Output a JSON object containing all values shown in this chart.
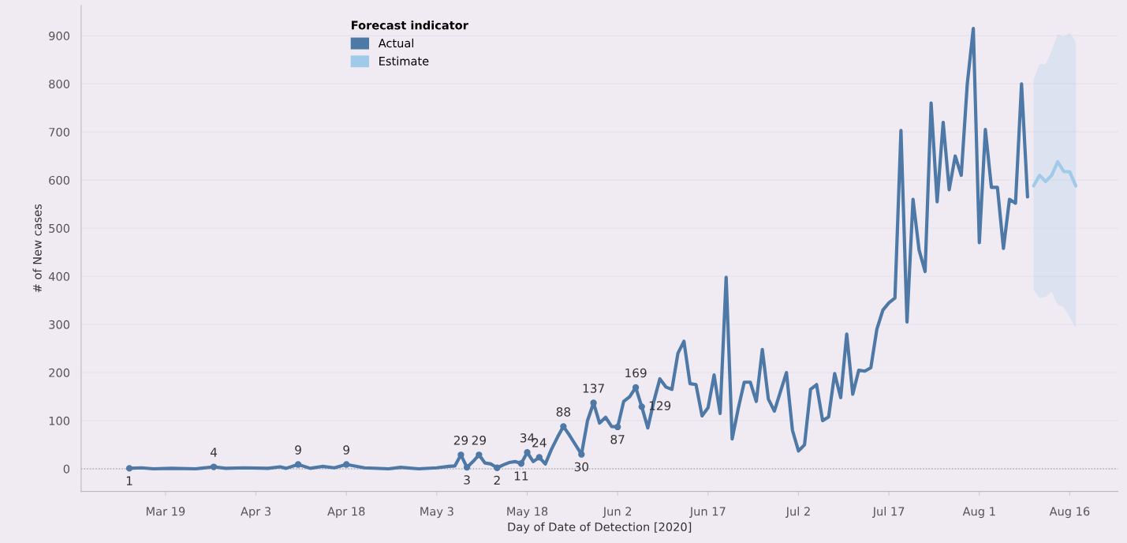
{
  "chart_data": {
    "type": "line",
    "xlabel": "Day of Date of Detection [2020]",
    "ylabel": "# of New cases",
    "legend_title": "Forecast indicator",
    "xlim": [
      "2020-03-05",
      "2020-08-24"
    ],
    "xticks": [
      {
        "value": "2020-03-19",
        "label": "Mar 19"
      },
      {
        "value": "2020-04-03",
        "label": "Apr 3"
      },
      {
        "value": "2020-04-18",
        "label": "Apr 18"
      },
      {
        "value": "2020-05-03",
        "label": "May 3"
      },
      {
        "value": "2020-05-18",
        "label": "May 18"
      },
      {
        "value": "2020-06-02",
        "label": "Jun 2"
      },
      {
        "value": "2020-06-17",
        "label": "Jun 17"
      },
      {
        "value": "2020-07-02",
        "label": "Jul 2"
      },
      {
        "value": "2020-07-17",
        "label": "Jul 17"
      },
      {
        "value": "2020-08-01",
        "label": "Aug 1"
      },
      {
        "value": "2020-08-16",
        "label": "Aug 16"
      }
    ],
    "ylim": [
      -47,
      963
    ],
    "yticks": [
      0,
      100,
      200,
      300,
      400,
      500,
      600,
      700,
      800,
      900
    ],
    "grid": "y",
    "legend": "top left",
    "ref_lines": [
      {
        "axis": "y",
        "value": 0,
        "color": "#aaaaaa",
        "line_style": "dotted"
      }
    ],
    "series": [
      {
        "name": "Actual",
        "color": "#4e79a7",
        "x": [
          "2020-03-13",
          "2020-03-15",
          "2020-03-17",
          "2020-03-20",
          "2020-03-24",
          "2020-03-27",
          "2020-03-29",
          "2020-04-01",
          "2020-04-05",
          "2020-04-07",
          "2020-04-08",
          "2020-04-10",
          "2020-04-12",
          "2020-04-14",
          "2020-04-16",
          "2020-04-18",
          "2020-04-21",
          "2020-04-25",
          "2020-04-27",
          "2020-04-30",
          "2020-05-03",
          "2020-05-05",
          "2020-05-06",
          "2020-05-07",
          "2020-05-08",
          "2020-05-09",
          "2020-05-10",
          "2020-05-11",
          "2020-05-12",
          "2020-05-13",
          "2020-05-14",
          "2020-05-15",
          "2020-05-16",
          "2020-05-17",
          "2020-05-18",
          "2020-05-19",
          "2020-05-20",
          "2020-05-21",
          "2020-05-22",
          "2020-05-23",
          "2020-05-24",
          "2020-05-25",
          "2020-05-26",
          "2020-05-27",
          "2020-05-28",
          "2020-05-29",
          "2020-05-30",
          "2020-05-31",
          "2020-06-01",
          "2020-06-02",
          "2020-06-03",
          "2020-06-04",
          "2020-06-05",
          "2020-06-06",
          "2020-06-07",
          "2020-06-08",
          "2020-06-09",
          "2020-06-10",
          "2020-06-11",
          "2020-06-12",
          "2020-06-13",
          "2020-06-14",
          "2020-06-15",
          "2020-06-16",
          "2020-06-17",
          "2020-06-18",
          "2020-06-19",
          "2020-06-20",
          "2020-06-21",
          "2020-06-22",
          "2020-06-23",
          "2020-06-24",
          "2020-06-25",
          "2020-06-26",
          "2020-06-27",
          "2020-06-28",
          "2020-06-29",
          "2020-06-30",
          "2020-07-01",
          "2020-07-02",
          "2020-07-03",
          "2020-07-04",
          "2020-07-05",
          "2020-07-06",
          "2020-07-07",
          "2020-07-08",
          "2020-07-09",
          "2020-07-10",
          "2020-07-11",
          "2020-07-12",
          "2020-07-13",
          "2020-07-14",
          "2020-07-15",
          "2020-07-16",
          "2020-07-17",
          "2020-07-18",
          "2020-07-19",
          "2020-07-20",
          "2020-07-21",
          "2020-07-22",
          "2020-07-23",
          "2020-07-24",
          "2020-07-25",
          "2020-07-26",
          "2020-07-27",
          "2020-07-28",
          "2020-07-29",
          "2020-07-30",
          "2020-07-31",
          "2020-08-01",
          "2020-08-02",
          "2020-08-03",
          "2020-08-04",
          "2020-08-05",
          "2020-08-06",
          "2020-08-07",
          "2020-08-08",
          "2020-08-09"
        ],
        "values": [
          1,
          2,
          0,
          1,
          0,
          4,
          1,
          2,
          1,
          4,
          1,
          9,
          1,
          5,
          2,
          9,
          2,
          0,
          3,
          0,
          2,
          5,
          6,
          29,
          3,
          15,
          29,
          12,
          10,
          2,
          8,
          13,
          15,
          11,
          34,
          15,
          24,
          10,
          40,
          65,
          88,
          70,
          50,
          30,
          100,
          137,
          95,
          107,
          88,
          87,
          140,
          150,
          169,
          129,
          85,
          140,
          187,
          170,
          165,
          240,
          265,
          177,
          175,
          110,
          127,
          195,
          115,
          398,
          62,
          125,
          180,
          180,
          140,
          248,
          145,
          120,
          160,
          200,
          80,
          37,
          50,
          165,
          175,
          100,
          108,
          198,
          148,
          280,
          155,
          205,
          203,
          210,
          290,
          330,
          345,
          355,
          703,
          305,
          560,
          455,
          410,
          760,
          555,
          720,
          580,
          650,
          610,
          800,
          915,
          470,
          705,
          585,
          585,
          458,
          560,
          552,
          800,
          565
        ],
        "value_labels": [
          "1",
          null,
          null,
          null,
          null,
          "4",
          null,
          null,
          null,
          null,
          null,
          "9",
          null,
          null,
          null,
          "9",
          null,
          null,
          null,
          null,
          null,
          null,
          null,
          "29",
          "3",
          null,
          "29",
          null,
          null,
          "2",
          null,
          null,
          null,
          "11",
          "34",
          null,
          "24",
          null,
          null,
          null,
          "88",
          null,
          null,
          "30",
          null,
          "137",
          null,
          null,
          null,
          "87",
          null,
          null,
          "169",
          "129",
          null,
          null,
          null,
          null,
          null,
          null,
          null,
          null,
          null,
          null,
          null,
          null,
          null,
          null,
          null,
          null,
          null,
          null,
          null,
          null,
          null,
          null,
          null,
          null,
          null,
          null,
          null,
          null,
          null,
          null,
          null,
          null,
          null,
          null,
          null,
          null,
          null,
          null,
          null,
          null,
          null,
          null,
          null,
          null,
          null,
          null,
          null,
          null,
          null,
          null,
          null,
          null,
          null,
          null,
          null,
          null,
          null,
          null,
          null,
          null,
          null,
          null,
          null,
          null
        ]
      },
      {
        "name": "Estimate",
        "color": "#a0cbe8",
        "x": [
          "2020-08-10",
          "2020-08-11",
          "2020-08-12",
          "2020-08-13",
          "2020-08-14",
          "2020-08-15",
          "2020-08-16",
          "2020-08-17"
        ],
        "values": [
          588,
          610,
          597,
          610,
          638,
          618,
          617,
          588
        ],
        "lower": [
          372,
          355,
          357,
          368,
          341,
          336,
          315,
          292
        ],
        "upper": [
          809,
          841,
          841,
          869,
          903,
          898,
          906,
          887
        ]
      }
    ]
  }
}
